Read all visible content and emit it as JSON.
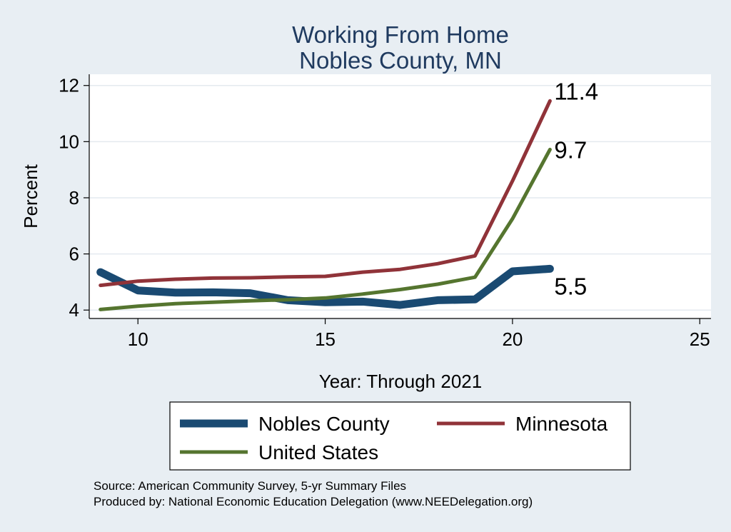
{
  "chart_data": {
    "type": "line",
    "title": [
      "Working From Home",
      "Nobles County, MN"
    ],
    "xlabel": "Year: Through 2021",
    "ylabel": "Percent",
    "xlim": [
      8.7,
      25.3
    ],
    "ylim": [
      3.7,
      12.4
    ],
    "xticks": [
      10,
      15,
      20,
      25
    ],
    "yticks": [
      4,
      6,
      8,
      10,
      12
    ],
    "grid": "horizontal",
    "legend_position": "bottom",
    "series": [
      {
        "name": "Nobles County",
        "color": "#1a4a72",
        "x": [
          9,
          10,
          11,
          12,
          13,
          14,
          15,
          16,
          17,
          18,
          19,
          20,
          21
        ],
        "y": [
          5.35,
          4.7,
          4.62,
          4.63,
          4.6,
          4.35,
          4.28,
          4.3,
          4.18,
          4.35,
          4.38,
          5.38,
          5.47
        ],
        "end_label": "5.5"
      },
      {
        "name": "Minnesota",
        "color": "#903339",
        "x": [
          9,
          10,
          11,
          12,
          13,
          14,
          15,
          16,
          17,
          18,
          19,
          20,
          21
        ],
        "y": [
          4.88,
          5.03,
          5.1,
          5.14,
          5.15,
          5.18,
          5.2,
          5.35,
          5.45,
          5.65,
          5.93,
          8.6,
          11.45
        ],
        "end_label": "11.4"
      },
      {
        "name": "United States",
        "color": "#55752f",
        "x": [
          9,
          10,
          11,
          12,
          13,
          14,
          15,
          16,
          17,
          18,
          19,
          20,
          21
        ],
        "y": [
          4.02,
          4.14,
          4.23,
          4.28,
          4.33,
          4.37,
          4.43,
          4.57,
          4.73,
          4.92,
          5.17,
          7.25,
          9.72
        ],
        "end_label": "9.7"
      }
    ]
  },
  "source_lines": [
    "Source: American Community Survey, 5-yr Summary Files",
    "Produced by: National Economic Education Delegation (www.NEEDelegation.org)"
  ]
}
